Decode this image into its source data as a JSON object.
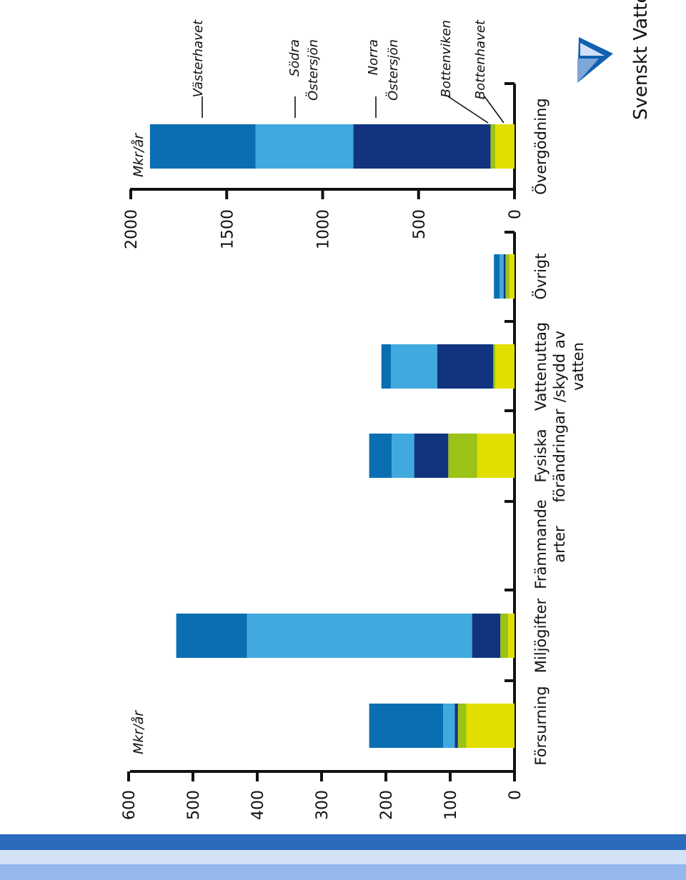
{
  "colors": {
    "bottenhavet": "#e2de00",
    "bottenviken": "#9bc216",
    "norra_ostersjon": "#12347f",
    "sodra_ostersjon": "#40aade",
    "vasterhavet": "#0a6fb2",
    "axis": "#111111",
    "stripe_dark": "#2a6bbd",
    "stripe_light": "#d4e2f6",
    "stripe_mid": "#94b8ec"
  },
  "brand": {
    "name": "Svenskt Vatten",
    "logo_icon": "svenskt-vatten-triangle-logo"
  },
  "chart_data": [
    {
      "type": "bar",
      "stacked": true,
      "orientation": "rotated-90-ccw",
      "ylabel": "Mkr/år",
      "ylim": [
        0,
        600
      ],
      "yticks": [
        "0",
        "100",
        "200",
        "300",
        "400",
        "500",
        "600"
      ],
      "categories": [
        "Försurning",
        "Miljögifter",
        "Främmande arter",
        "Fysiska förändringar",
        "Vattenuttag /skydd av vatten",
        "Övrigt"
      ],
      "category_lines": [
        [
          "Försurning"
        ],
        [
          "Miljögifter"
        ],
        [
          "Främmande",
          "arter"
        ],
        [
          "Fysiska",
          "förändringar"
        ],
        [
          "Vattenuttag",
          "/skydd av",
          "vatten"
        ],
        [
          "Övrigt"
        ]
      ],
      "series": [
        {
          "key": "bottenhavet",
          "values": [
            75,
            10,
            0,
            58,
            30,
            8
          ]
        },
        {
          "key": "bottenviken",
          "values": [
            13,
            12,
            0,
            45,
            3,
            6
          ]
        },
        {
          "key": "norra_ostersjon",
          "values": [
            5,
            44,
            0,
            53,
            87,
            3
          ]
        },
        {
          "key": "sodra_ostersjon",
          "values": [
            18,
            350,
            0,
            35,
            72,
            6
          ]
        },
        {
          "key": "vasterhavet",
          "values": [
            115,
            110,
            0,
            35,
            15,
            9
          ]
        }
      ]
    },
    {
      "type": "bar",
      "stacked": true,
      "orientation": "rotated-90-ccw",
      "ylabel": "Mkr/år",
      "ylim": [
        0,
        2000
      ],
      "yticks": [
        "0",
        "500",
        "1000",
        "1500",
        "2000"
      ],
      "categories": [
        "Övergödning"
      ],
      "series": [
        {
          "key": "bottenhavet",
          "name": "Bottenhavet",
          "values": [
            100
          ]
        },
        {
          "key": "bottenviken",
          "name": "Bottenviken",
          "values": [
            25
          ]
        },
        {
          "key": "norra_ostersjon",
          "name": "Norra Östersjön",
          "values": [
            715
          ]
        },
        {
          "key": "sodra_ostersjon",
          "name": "Södra Östersjön",
          "values": [
            510
          ]
        },
        {
          "key": "vasterhavet",
          "name": "Västerhavet",
          "values": [
            550
          ]
        }
      ],
      "legend_placement": "annotations beside the bar"
    }
  ]
}
